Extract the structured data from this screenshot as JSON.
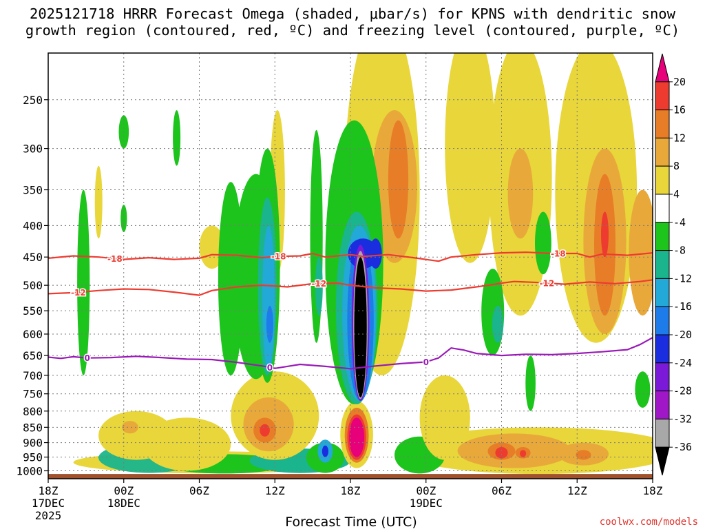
{
  "chart_data": {
    "type": "heatmap",
    "title_line1": "2025121718 HRRR Forecast Omega (shaded, μbar/s) for KPNS with dendritic snow",
    "title_line2": "growth region (contoured, red, ºC) and freezing level (contoured, purple, ºC)",
    "xlabel": "Forecast Time (UTC)",
    "ylabel": "",
    "credit": "coolwx.com/models",
    "x_range_hours": [
      0,
      48
    ],
    "y_range_hPa": [
      210,
      1030
    ],
    "x_ticks": [
      {
        "hour": 0,
        "label": "18Z",
        "date": "17DEC",
        "year": "2025"
      },
      {
        "hour": 6,
        "label": "00Z",
        "date": "18DEC",
        "year": ""
      },
      {
        "hour": 12,
        "label": "06Z",
        "date": "",
        "year": ""
      },
      {
        "hour": 18,
        "label": "12Z",
        "date": "",
        "year": ""
      },
      {
        "hour": 24,
        "label": "18Z",
        "date": "",
        "year": ""
      },
      {
        "hour": 30,
        "label": "00Z",
        "date": "19DEC",
        "year": ""
      },
      {
        "hour": 36,
        "label": "06Z",
        "date": "",
        "year": ""
      },
      {
        "hour": 42,
        "label": "12Z",
        "date": "",
        "year": ""
      },
      {
        "hour": 48,
        "label": "18Z",
        "date": "",
        "year": ""
      }
    ],
    "y_ticks": [
      250,
      300,
      350,
      400,
      450,
      500,
      550,
      600,
      650,
      700,
      750,
      800,
      850,
      900,
      950,
      1000
    ],
    "surface_pressure_hPa": 1012,
    "colorbar": {
      "levels": [
        20,
        16,
        12,
        8,
        4,
        -4,
        -8,
        -12,
        -16,
        -20,
        -24,
        -28,
        -32,
        -36
      ],
      "colors": [
        "#e8007a",
        "#ee3b30",
        "#e87d27",
        "#e8a93a",
        "#e8d63a",
        "#ffffff",
        "#1cc41c",
        "#1ab58c",
        "#22a9d8",
        "#1d7bea",
        "#1a2ee0",
        "#7a1ad8",
        "#a017c7",
        "#a8a8a8",
        "#000000"
      ]
    },
    "shading_colors": {
      "yellow": "#e8d63a",
      "light_orange": "#e8a93a",
      "orange": "#e87d27",
      "red": "#ee3b30",
      "magenta": "#e8007a",
      "green": "#1cc41c",
      "teal": "#1ab58c",
      "cyan": "#22a9d8",
      "blue": "#1d7bea",
      "navy": "#1a2ee0",
      "purple": "#7a1ad8",
      "gray": "#a8a8a8",
      "black": "#000000",
      "ground": "#a0522d"
    },
    "omega_features": [
      {
        "name": "ascent-core-1",
        "hour": 2.8,
        "p_top": 340,
        "p_bot": 700,
        "width_h": 0.9,
        "min": -8
      },
      {
        "name": "ascent-core-2",
        "hour": 6.0,
        "p_top": 265,
        "p_bot": 300,
        "width_h": 0.8,
        "min": -8
      },
      {
        "name": "ascent-core-3",
        "hour": 17.5,
        "p_top": 310,
        "p_bot": 700,
        "width_h": 1.6,
        "min": -24
      },
      {
        "name": "ascent-core-4",
        "hour": 24.5,
        "p_top": 420,
        "p_bot": 760,
        "width_h": 1.3,
        "min": -36
      },
      {
        "name": "ascent-core-5",
        "hour": 26.0,
        "p_top": 420,
        "p_bot": 470,
        "width_h": 0.8,
        "min": -24
      },
      {
        "name": "ascent-core-6",
        "hour": 35.5,
        "p_top": 480,
        "p_bot": 640,
        "width_h": 1.5,
        "min": -16
      },
      {
        "name": "ascent-core-7",
        "hour": 39.3,
        "p_top": 380,
        "p_bot": 480,
        "width_h": 0.6,
        "min": -8
      },
      {
        "name": "ascent-core-8",
        "hour": 22.0,
        "p_top": 910,
        "p_bot": 950,
        "width_h": 0.5,
        "min": -24
      },
      {
        "name": "descent-core-1",
        "hour": 24.5,
        "p_top": 820,
        "p_bot": 960,
        "width_h": 1.3,
        "max": 20
      },
      {
        "name": "descent-core-2",
        "hour": 17.2,
        "p_top": 840,
        "p_bot": 880,
        "width_h": 0.8,
        "max": 16
      },
      {
        "name": "descent-core-3",
        "hour": 27.5,
        "p_top": 270,
        "p_bot": 420,
        "width_h": 2.0,
        "max": 12
      },
      {
        "name": "descent-core-4",
        "hour": 44.2,
        "p_top": 330,
        "p_bot": 550,
        "width_h": 1.4,
        "max": 16
      },
      {
        "name": "descent-core-5",
        "hour": 36.0,
        "p_top": 920,
        "p_bot": 950,
        "width_h": 1.0,
        "max": 16
      },
      {
        "name": "descent-core-6",
        "hour": 37.7,
        "p_top": 920,
        "p_bot": 950,
        "width_h": 0.8,
        "max": 16
      }
    ],
    "contours": [
      {
        "name": "minus-18",
        "label": "-18",
        "color": "#ee3b30",
        "points": [
          [
            0,
            452
          ],
          [
            2,
            448
          ],
          [
            4,
            450
          ],
          [
            6,
            454
          ],
          [
            8,
            451
          ],
          [
            10,
            454
          ],
          [
            12,
            452
          ],
          [
            13,
            446
          ],
          [
            15,
            447
          ],
          [
            17,
            451
          ],
          [
            18,
            449
          ],
          [
            20,
            448
          ],
          [
            21,
            444
          ],
          [
            22,
            450
          ],
          [
            24,
            446
          ],
          [
            25,
            449
          ],
          [
            27,
            446
          ],
          [
            29,
            451
          ],
          [
            31,
            457
          ],
          [
            32,
            450
          ],
          [
            34,
            446
          ],
          [
            36,
            443
          ],
          [
            38,
            442
          ],
          [
            40,
            444
          ],
          [
            42,
            444
          ],
          [
            43,
            450
          ],
          [
            44,
            445
          ],
          [
            46,
            447
          ],
          [
            48,
            443
          ]
        ],
        "label_hours": [
          5.3,
          18.3,
          40.5
        ]
      },
      {
        "name": "minus-12",
        "label": "-12",
        "color": "#ee3b30",
        "points": [
          [
            0,
            516
          ],
          [
            2,
            514
          ],
          [
            4,
            510
          ],
          [
            6,
            507
          ],
          [
            8,
            508
          ],
          [
            10,
            513
          ],
          [
            12,
            519
          ],
          [
            13,
            510
          ],
          [
            15,
            503
          ],
          [
            17,
            500
          ],
          [
            19,
            503
          ],
          [
            21,
            497
          ],
          [
            23,
            496
          ],
          [
            24,
            500
          ],
          [
            26,
            505
          ],
          [
            28,
            507
          ],
          [
            30,
            511
          ],
          [
            32,
            509
          ],
          [
            34,
            503
          ],
          [
            35,
            500
          ],
          [
            36,
            496
          ],
          [
            37,
            493
          ],
          [
            39,
            495
          ],
          [
            41,
            498
          ],
          [
            43,
            494
          ],
          [
            45,
            497
          ],
          [
            47,
            493
          ],
          [
            48,
            490
          ]
        ],
        "label_hours": [
          2.4,
          21.5,
          39.6
        ]
      },
      {
        "name": "freezing-level",
        "label": "0",
        "color": "#9a1ab8",
        "points": [
          [
            0,
            654
          ],
          [
            1,
            657
          ],
          [
            2,
            653
          ],
          [
            3,
            656
          ],
          [
            5,
            655
          ],
          [
            7,
            652
          ],
          [
            9,
            655
          ],
          [
            11,
            659
          ],
          [
            13,
            660
          ],
          [
            15,
            667
          ],
          [
            17,
            676
          ],
          [
            18,
            682
          ],
          [
            19,
            677
          ],
          [
            20,
            672
          ],
          [
            22,
            677
          ],
          [
            24,
            683
          ],
          [
            26,
            676
          ],
          [
            28,
            670
          ],
          [
            30,
            666
          ],
          [
            31,
            656
          ],
          [
            32,
            632
          ],
          [
            33,
            637
          ],
          [
            34,
            645
          ],
          [
            36,
            650
          ],
          [
            38,
            647
          ],
          [
            40,
            648
          ],
          [
            42,
            645
          ],
          [
            44,
            641
          ],
          [
            46,
            636
          ],
          [
            47,
            624
          ],
          [
            48,
            608
          ]
        ],
        "label_hours": [
          3.1,
          17.6,
          30.0
        ]
      }
    ]
  }
}
